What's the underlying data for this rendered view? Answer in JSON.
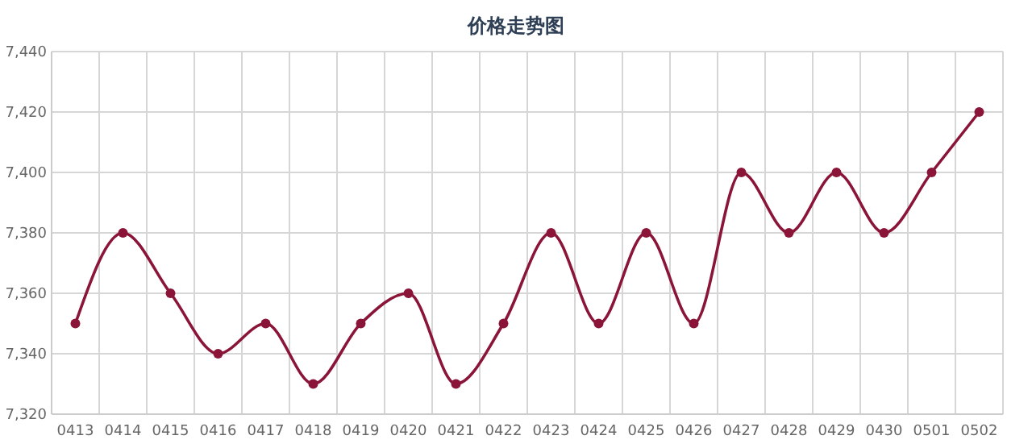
{
  "chart_data": {
    "type": "line",
    "title": "价格走势图",
    "categories": [
      "0413",
      "0414",
      "0415",
      "0416",
      "0417",
      "0418",
      "0419",
      "0420",
      "0421",
      "0422",
      "0423",
      "0424",
      "0425",
      "0426",
      "0427",
      "0428",
      "0429",
      "0430",
      "0501",
      "0502"
    ],
    "series": [
      {
        "color": "#8b1538",
        "values": [
          7350,
          7380,
          7360,
          7340,
          7350,
          7330,
          7350,
          7360,
          7330,
          7350,
          7380,
          7350,
          7380,
          7350,
          7400,
          7380,
          7400,
          7380,
          7400,
          7420
        ]
      }
    ],
    "ylim": [
      7320,
      7440
    ],
    "yticks": [
      {
        "value": 7320,
        "label": "7,320"
      },
      {
        "value": 7340,
        "label": "7,340"
      },
      {
        "value": 7360,
        "label": "7,360"
      },
      {
        "value": 7380,
        "label": "7,380"
      },
      {
        "value": 7400,
        "label": "7,400"
      },
      {
        "value": 7420,
        "label": "7,420"
      },
      {
        "value": 7440,
        "label": "7,440"
      }
    ],
    "grid": true,
    "marker": "circle"
  }
}
